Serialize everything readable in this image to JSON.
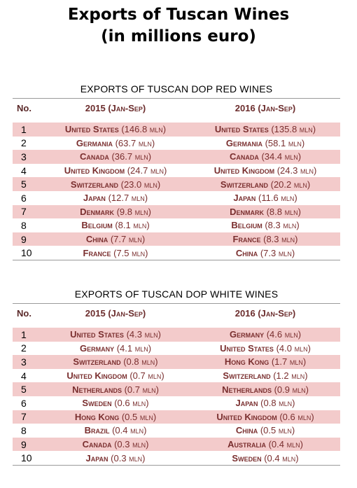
{
  "title_line1": "Exports of Tuscan Wines",
  "title_line2": "(in millions euro)",
  "red": {
    "title": "Exports of Tuscan DOP Red Wines",
    "col_no": "No.",
    "col_2015": "2015 (Jan-Sep)",
    "col_2016": "2016 (Jan-Sep)",
    "rows": [
      {
        "no": "1",
        "c2015": "United States",
        "v2015": "(146.8 mln)",
        "c2016": "United States",
        "v2016": "(135.8 mln)"
      },
      {
        "no": "2",
        "c2015": "Germania",
        "v2015": "(63.7 mln)",
        "c2016": "Germania",
        "v2016": "(58.1 mln)"
      },
      {
        "no": "3",
        "c2015": "Canada",
        "v2015": "(36.7 mln)",
        "c2016": "Canada",
        "v2016": "(34.4 mln)"
      },
      {
        "no": "4",
        "c2015": "United Kingdom",
        "v2015": "(24.7 mln)",
        "c2016": "United Kingdom",
        "v2016": "(24.3 mln)"
      },
      {
        "no": "5",
        "c2015": "Switzerland",
        "v2015": "(23.0 mln)",
        "c2016": "Switzerland",
        "v2016": "(20.2 mln)"
      },
      {
        "no": "6",
        "c2015": "Japan",
        "v2015": "(12.7 mln)",
        "c2016": "Japan",
        "v2016": "(11.6 mln)"
      },
      {
        "no": "7",
        "c2015": "Denmark",
        "v2015": "(9.8 mln)",
        "c2016": "Denmark",
        "v2016": "(8.8 mln)"
      },
      {
        "no": "8",
        "c2015": "Belgium",
        "v2015": "(8.1 mln)",
        "c2016": "Belgium",
        "v2016": "(8.3 mln)"
      },
      {
        "no": "9",
        "c2015": "China",
        "v2015": "(7.7 mln)",
        "c2016": "France",
        "v2016": "(8.3 mln)"
      },
      {
        "no": "10",
        "c2015": "France",
        "v2015": "(7.5 mln)",
        "c2016": "China",
        "v2016": "(7.3 mln)"
      }
    ]
  },
  "white": {
    "title": "Exports of Tuscan DOP White Wines",
    "col_no": "No.",
    "col_2015": "2015 (Jan-Sep)",
    "col_2016": "2016 (Jan-Sep)",
    "rows": [
      {
        "no": "1",
        "c2015": "United States",
        "v2015": "(4.3 mln)",
        "c2016": "Germany",
        "v2016": "(4.6 mln)"
      },
      {
        "no": "2",
        "c2015": "Germany",
        "v2015": "(4.1 mln)",
        "c2016": "United States",
        "v2016": "(4.0 mln)"
      },
      {
        "no": "3",
        "c2015": "Switzerland",
        "v2015": "(0.8 mln)",
        "c2016": "Hong Kong",
        "v2016": "(1.7 mln)"
      },
      {
        "no": "4",
        "c2015": "United Kingdom",
        "v2015": "(0.7 mln)",
        "c2016": "Switzerland",
        "v2016": "(1.2 mln)"
      },
      {
        "no": "5",
        "c2015": "Netherlands",
        "v2015": "(0.7 mln)",
        "c2016": "Netherlands",
        "v2016": "(0.9 mln)"
      },
      {
        "no": "6",
        "c2015": "Sweden",
        "v2015": "(0.6 mln)",
        "c2016": "Japan",
        "v2016": "(0.8 mln)"
      },
      {
        "no": "7",
        "c2015": "Hong Kong",
        "v2015": "(0.5 mln)",
        "c2016": "United Kingdom",
        "v2016": "(0.6 mln)"
      },
      {
        "no": "8",
        "c2015": "Brazil",
        "v2015": "(0.4 mln)",
        "c2016": "China",
        "v2016": "(0.5 mln)"
      },
      {
        "no": "9",
        "c2015": "Canada",
        "v2015": "(0.3 mln)",
        "c2016": "Australia",
        "v2016": "(0.4 mln)"
      },
      {
        "no": "10",
        "c2015": "Japan",
        "v2015": "(0.3 mln)",
        "c2016": "Sweden",
        "v2016": "(0.4 mln)"
      }
    ]
  }
}
